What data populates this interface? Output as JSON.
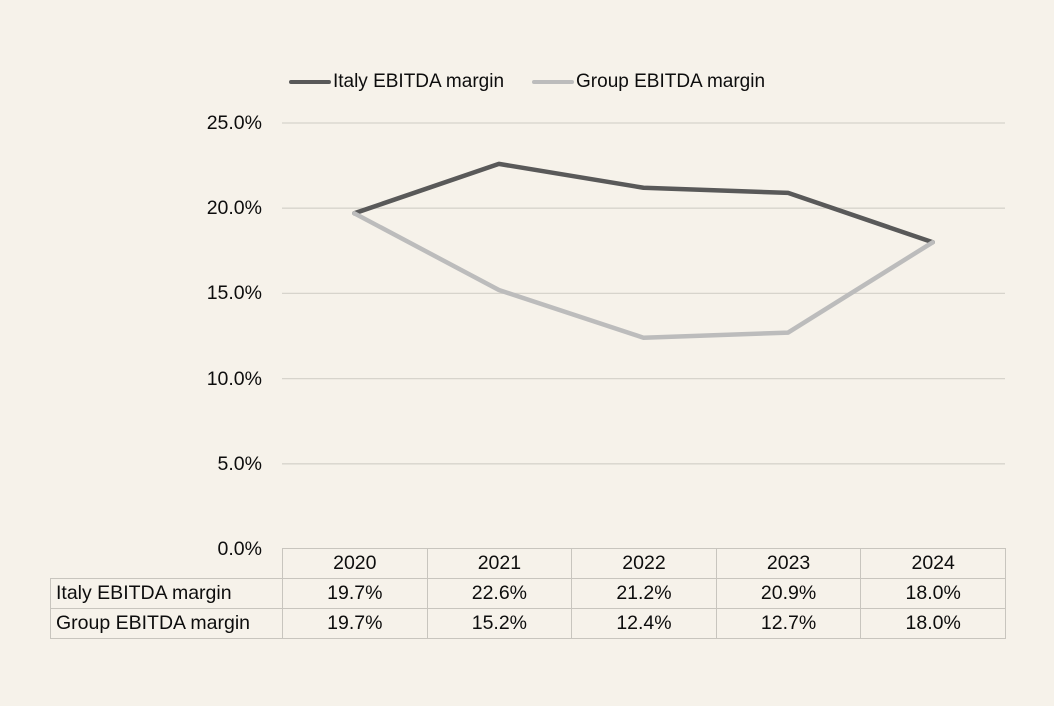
{
  "colors": {
    "background": "#f6f2ea",
    "gridline": "#d7d4cc",
    "italy_series": "#595959",
    "group_series": "#bcbcbc",
    "table_border": "#c8c5be",
    "text": "#0d0d0d"
  },
  "legend": {
    "items": [
      {
        "label": "Italy EBITDA margin",
        "color": "#595959"
      },
      {
        "label": "Group EBITDA margin",
        "color": "#bcbcbc"
      }
    ]
  },
  "chart_data": {
    "type": "line",
    "categories": [
      "2020",
      "2021",
      "2022",
      "2023",
      "2024"
    ],
    "series": [
      {
        "name": "Italy EBITDA margin",
        "values": [
          19.7,
          22.6,
          21.2,
          20.9,
          18.0
        ],
        "color": "#595959"
      },
      {
        "name": "Group EBITDA margin",
        "values": [
          19.7,
          15.2,
          12.4,
          12.7,
          18.0
        ],
        "color": "#bcbcbc"
      }
    ],
    "title": "",
    "xlabel": "",
    "ylabel": "",
    "ylim": [
      0,
      25
    ],
    "ytick_step": 5,
    "ytick_labels": [
      "25.0%",
      "20.0%",
      "15.0%",
      "10.0%",
      "5.0%",
      "0.0%"
    ],
    "grid": "horizontal",
    "legend_position": "top"
  },
  "table": {
    "col_headers": [
      "2020",
      "2021",
      "2022",
      "2023",
      "2024"
    ],
    "rows": [
      {
        "label": "Italy EBITDA margin",
        "values": [
          "19.7%",
          "22.6%",
          "21.2%",
          "20.9%",
          "18.0%"
        ]
      },
      {
        "label": "Group EBITDA margin",
        "values": [
          "19.7%",
          "15.2%",
          "12.4%",
          "12.7%",
          "18.0%"
        ]
      }
    ]
  }
}
